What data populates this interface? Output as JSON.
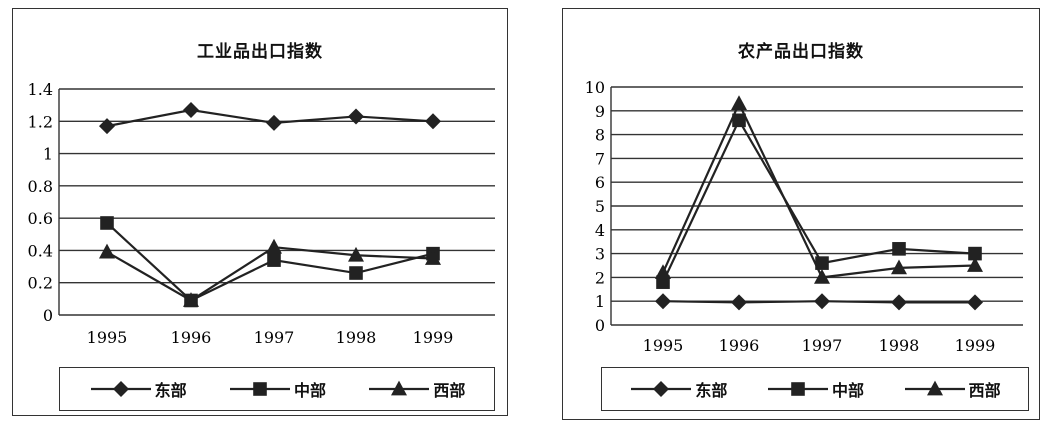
{
  "chart_data": [
    {
      "type": "line",
      "title": "工业品出口指数",
      "categories": [
        "1995",
        "1996",
        "1997",
        "1998",
        "1999"
      ],
      "ylim": [
        0,
        1.4
      ],
      "yticks": [
        "0",
        "0.2",
        "0.4",
        "0.6",
        "0.8",
        "1",
        "1.2",
        "1.4"
      ],
      "ytick_values": [
        0,
        0.2,
        0.4,
        0.6,
        0.8,
        1.0,
        1.2,
        1.4
      ],
      "grid": true,
      "legend": "bottom",
      "series": [
        {
          "name": "东部",
          "marker": "diamond",
          "values": [
            1.17,
            1.27,
            1.19,
            1.23,
            1.2
          ]
        },
        {
          "name": "中部",
          "marker": "square",
          "values": [
            0.57,
            0.09,
            0.34,
            0.26,
            0.38
          ]
        },
        {
          "name": "西部",
          "marker": "triangle",
          "values": [
            0.39,
            0.09,
            0.42,
            0.37,
            0.35
          ]
        }
      ]
    },
    {
      "type": "line",
      "title": "农产品出口指数",
      "categories": [
        "1995",
        "1996",
        "1997",
        "1998",
        "1999"
      ],
      "ylim": [
        0,
        10
      ],
      "yticks": [
        "0",
        "1",
        "2",
        "3",
        "4",
        "5",
        "6",
        "7",
        "8",
        "9",
        "10"
      ],
      "ytick_values": [
        0,
        1,
        2,
        3,
        4,
        5,
        6,
        7,
        8,
        9,
        10
      ],
      "grid": true,
      "legend": "bottom",
      "series": [
        {
          "name": "东部",
          "marker": "diamond",
          "values": [
            1.0,
            0.95,
            1.0,
            0.95,
            0.95
          ]
        },
        {
          "name": "中部",
          "marker": "square",
          "values": [
            1.8,
            8.6,
            2.6,
            3.2,
            3.0
          ]
        },
        {
          "name": "西部",
          "marker": "triangle",
          "values": [
            2.2,
            9.3,
            2.0,
            2.4,
            2.5
          ]
        }
      ]
    }
  ]
}
